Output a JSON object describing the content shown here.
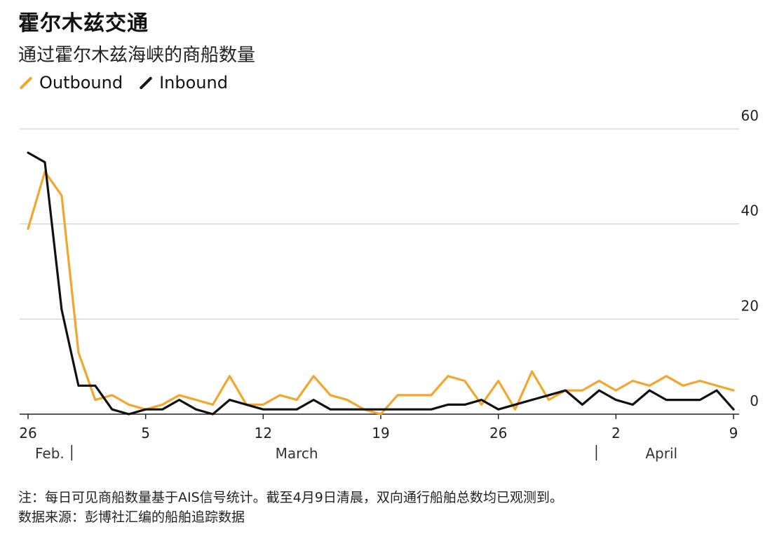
{
  "colors": {
    "outbound": "#f2a62c",
    "inbound": "#111111",
    "grid": "#c8c8c8",
    "axis": "#222222"
  },
  "chart_data": {
    "type": "line",
    "title": "霍尔木兹交通",
    "subtitle": "通过霍尔木兹海峡的商船数量",
    "x": [
      "2026-02-26",
      "2026-02-27",
      "2026-02-28",
      "2026-03-01",
      "2026-03-02",
      "2026-03-03",
      "2026-03-04",
      "2026-03-05",
      "2026-03-06",
      "2026-03-07",
      "2026-03-08",
      "2026-03-09",
      "2026-03-10",
      "2026-03-11",
      "2026-03-12",
      "2026-03-13",
      "2026-03-14",
      "2026-03-15",
      "2026-03-16",
      "2026-03-17",
      "2026-03-18",
      "2026-03-19",
      "2026-03-20",
      "2026-03-21",
      "2026-03-22",
      "2026-03-23",
      "2026-03-24",
      "2026-03-25",
      "2026-03-26",
      "2026-03-27",
      "2026-03-28",
      "2026-03-29",
      "2026-03-30",
      "2026-03-31",
      "2026-04-01",
      "2026-04-02",
      "2026-04-03",
      "2026-04-04",
      "2026-04-05",
      "2026-04-06",
      "2026-04-07",
      "2026-04-08",
      "2026-04-09"
    ],
    "series": [
      {
        "name": "Outbound",
        "color": "#f2a62c",
        "values": [
          39,
          51,
          46,
          13,
          3,
          4,
          2,
          1,
          2,
          4,
          3,
          2,
          8,
          2,
          2,
          4,
          3,
          8,
          4,
          3,
          1,
          0,
          4,
          4,
          4,
          8,
          7,
          2,
          7,
          1,
          9,
          3,
          5,
          5,
          7,
          5,
          7,
          6,
          8,
          6,
          7,
          6,
          5
        ]
      },
      {
        "name": "Inbound",
        "color": "#111111",
        "values": [
          55,
          53,
          22,
          6,
          6,
          1,
          0,
          1,
          1,
          3,
          1,
          0,
          3,
          2,
          1,
          1,
          1,
          3,
          1,
          1,
          1,
          1,
          1,
          1,
          1,
          2,
          2,
          3,
          1,
          2,
          3,
          4,
          5,
          2,
          5,
          3,
          2,
          5,
          3,
          3,
          3,
          5,
          1
        ]
      }
    ],
    "ylim": [
      0,
      60
    ],
    "yticks": [
      0,
      20,
      40,
      60
    ],
    "xticks": [
      {
        "date": "2026-02-26",
        "label": "26"
      },
      {
        "date": "2026-03-05",
        "label": "5"
      },
      {
        "date": "2026-03-12",
        "label": "12"
      },
      {
        "date": "2026-03-19",
        "label": "19"
      },
      {
        "date": "2026-03-26",
        "label": "26"
      },
      {
        "date": "2026-04-02",
        "label": "2"
      },
      {
        "date": "2026-04-09",
        "label": "9"
      }
    ],
    "months": [
      {
        "label": "Feb.",
        "separator": true
      },
      {
        "label": "March",
        "separator": false
      },
      {
        "label": "April",
        "separator": true
      }
    ],
    "grid": true,
    "yaxis_side": "right",
    "legend": "top-left"
  },
  "note": "注：每日可见商船数量基于AIS信号统计。截至4月9日清晨，双向通行船舶总数均已观测到。",
  "source": "数据来源：彭博社汇编的船舶追踪数据"
}
